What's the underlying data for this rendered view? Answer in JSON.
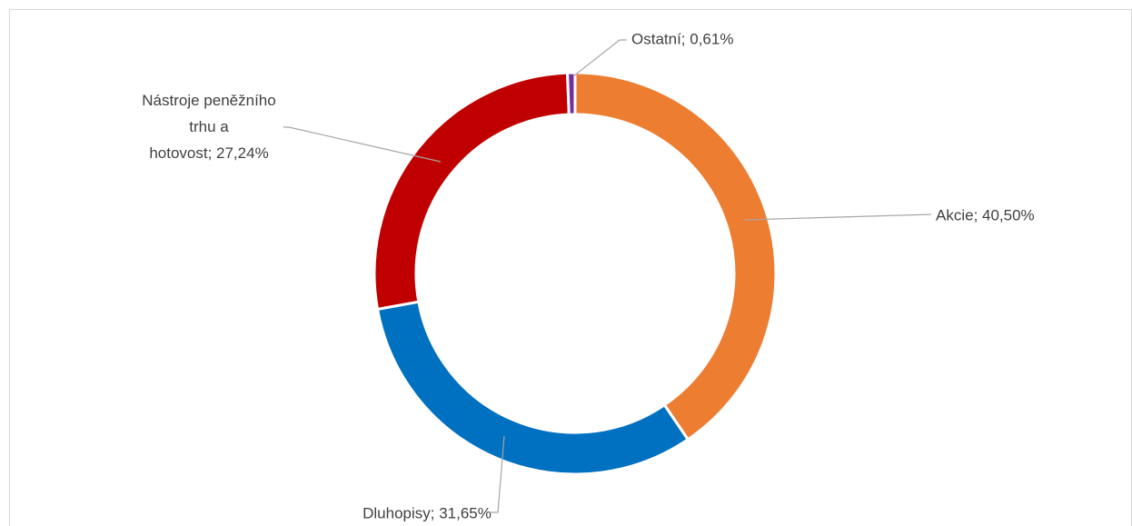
{
  "chart_data": {
    "type": "donut",
    "labels": [
      "Akcie; 40,50%",
      "Dluhopisy; 31,65%",
      "Nástroje peněžního trhu a hotovost; 27,24%",
      "Ostatní; 0,61%"
    ],
    "values": [
      40.5,
      31.65,
      27.24,
      0.61
    ],
    "colors": [
      "#ED7D31",
      "#0070C0",
      "#C00000",
      "#7030A0"
    ]
  }
}
